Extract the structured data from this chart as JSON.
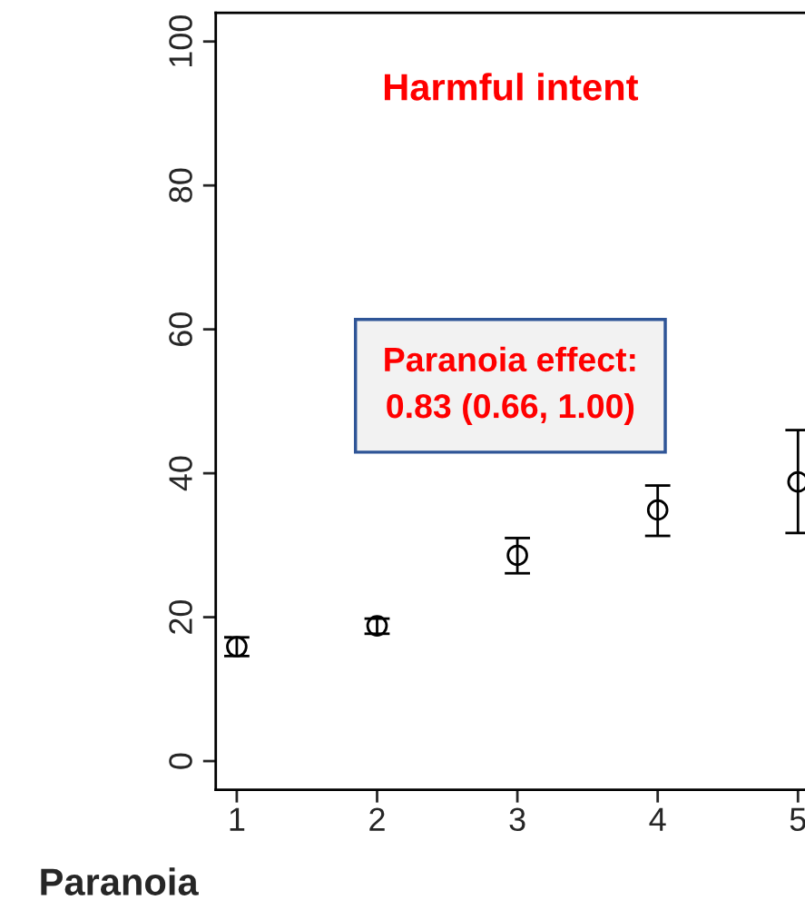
{
  "chart_data": {
    "type": "scatter",
    "title": "Harmful intent",
    "xlabel": "Paranoia",
    "x": [
      1,
      2,
      3,
      4,
      5
    ],
    "series": [
      {
        "color": "#000000",
        "values": [
          15.9,
          18.8,
          28.6,
          34.9,
          38.8
        ],
        "errors": [
          [
            14.6,
            17.2
          ],
          [
            17.7,
            19.8
          ],
          [
            26.1,
            31.0
          ],
          [
            31.3,
            38.3
          ],
          [
            31.7,
            46.0
          ]
        ]
      }
    ],
    "annotations": [
      "Paranoia effect:\n0.83 (0.66, 1.00)"
    ],
    "xlim": [
      0.85,
      5.05
    ],
    "xticks": [
      1,
      2,
      3,
      4,
      5
    ],
    "ylim": [
      -4,
      104
    ],
    "yticks": [
      0,
      20,
      40,
      60,
      80,
      100
    ],
    "marker": "circle",
    "grid": false,
    "legend": false
  }
}
